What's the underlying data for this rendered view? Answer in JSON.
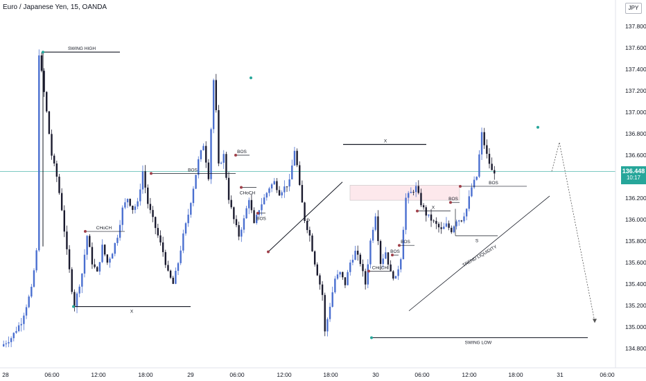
{
  "title": "Euro / Japanese Yen, 15, OANDA",
  "currency_label": "JPY",
  "last_price": "136.448",
  "countdown": "10:17",
  "colors": {
    "up": "#4a6fd0",
    "down": "#1a1a2e",
    "current_price_line": "#26a69a",
    "label_bg": "#26a69a",
    "axis_text": "#131722",
    "zone_fill": "#fde8ec"
  },
  "chart_data": {
    "type": "candlestick",
    "timeframe": "15",
    "y_ticks": [
      "134.800",
      "135.000",
      "135.200",
      "135.400",
      "135.600",
      "135.800",
      "136.000",
      "136.200",
      "136.400",
      "136.600",
      "136.800",
      "137.000",
      "137.200",
      "137.400",
      "137.600",
      "137.800"
    ],
    "ylim": [
      134.72,
      138.05
    ],
    "x_ticks": [
      "28",
      "06:00",
      "12:00",
      "18:00",
      "29",
      "06:00",
      "12:00",
      "18:00",
      "30",
      "06:00",
      "12:00",
      "18:00",
      "31",
      "06:00"
    ],
    "price_path": [
      [
        0,
        134.82
      ],
      [
        4,
        134.9
      ],
      [
        8,
        135.05
      ],
      [
        12,
        135.35
      ],
      [
        14,
        135.7
      ],
      [
        15,
        137.55
      ],
      [
        18,
        137.0
      ],
      [
        20,
        136.6
      ],
      [
        22,
        136.4
      ],
      [
        24,
        136.1
      ],
      [
        26,
        135.7
      ],
      [
        28,
        135.35
      ],
      [
        29,
        135.2
      ],
      [
        32,
        135.5
      ],
      [
        34,
        135.85
      ],
      [
        36,
        135.6
      ],
      [
        38,
        135.5
      ],
      [
        40,
        135.75
      ],
      [
        42,
        135.6
      ],
      [
        44,
        135.7
      ],
      [
        46,
        135.85
      ],
      [
        48,
        136.1
      ],
      [
        50,
        136.2
      ],
      [
        52,
        136.1
      ],
      [
        54,
        136.15
      ],
      [
        56,
        136.45
      ],
      [
        58,
        136.15
      ],
      [
        60,
        136.0
      ],
      [
        62,
        135.85
      ],
      [
        64,
        135.7
      ],
      [
        66,
        135.5
      ],
      [
        68,
        135.4
      ],
      [
        70,
        135.6
      ],
      [
        72,
        135.85
      ],
      [
        74,
        136.05
      ],
      [
        76,
        136.3
      ],
      [
        78,
        136.55
      ],
      [
        80,
        136.7
      ],
      [
        82,
        136.4
      ],
      [
        83,
        136.85
      ],
      [
        84,
        137.3
      ],
      [
        85,
        137.0
      ],
      [
        86,
        136.5
      ],
      [
        88,
        136.6
      ],
      [
        90,
        136.2
      ],
      [
        92,
        136.0
      ],
      [
        94,
        135.85
      ],
      [
        96,
        136.0
      ],
      [
        98,
        136.2
      ],
      [
        100,
        135.95
      ],
      [
        102,
        136.1
      ],
      [
        104,
        136.2
      ],
      [
        106,
        136.3
      ],
      [
        108,
        136.35
      ],
      [
        110,
        136.25
      ],
      [
        112,
        136.3
      ],
      [
        114,
        136.35
      ],
      [
        116,
        136.65
      ],
      [
        117,
        136.5
      ],
      [
        118,
        136.3
      ],
      [
        120,
        136.0
      ],
      [
        122,
        135.85
      ],
      [
        124,
        135.6
      ],
      [
        125,
        135.5
      ],
      [
        127,
        135.3
      ],
      [
        128,
        134.95
      ],
      [
        130,
        135.2
      ],
      [
        132,
        135.45
      ],
      [
        134,
        135.5
      ],
      [
        136,
        135.4
      ],
      [
        138,
        135.6
      ],
      [
        140,
        135.7
      ],
      [
        142,
        135.6
      ],
      [
        144,
        135.4
      ],
      [
        146,
        135.8
      ],
      [
        148,
        136.05
      ],
      [
        150,
        135.6
      ],
      [
        152,
        135.7
      ],
      [
        154,
        135.5
      ],
      [
        156,
        135.45
      ],
      [
        158,
        135.65
      ],
      [
        160,
        136.2
      ],
      [
        162,
        136.25
      ],
      [
        164,
        136.3
      ],
      [
        166,
        136.15
      ],
      [
        168,
        136.05
      ],
      [
        170,
        136.0
      ],
      [
        172,
        135.95
      ],
      [
        174,
        135.9
      ],
      [
        176,
        135.95
      ],
      [
        178,
        135.9
      ],
      [
        180,
        136.0
      ],
      [
        182,
        136.0
      ],
      [
        184,
        136.1
      ],
      [
        186,
        136.3
      ],
      [
        188,
        136.4
      ],
      [
        190,
        136.8
      ],
      [
        192,
        136.6
      ],
      [
        194,
        136.45
      ]
    ],
    "projection_path": [
      [
        194,
        136.45
      ],
      [
        197,
        136.72
      ],
      [
        210,
        135.05
      ]
    ],
    "annotations": [
      {
        "label": "SWING HIGH",
        "price": 137.56
      },
      {
        "label": "X",
        "price": 135.19
      },
      {
        "label": "CHoCH",
        "price": 135.89
      },
      {
        "label": "BOS",
        "price": 136.43
      },
      {
        "label": "BOS",
        "price": 136.6
      },
      {
        "label": "CHoCH",
        "price": 136.3
      },
      {
        "label": "BOS",
        "price": 136.06
      },
      {
        "label": "S",
        "price": 136.02
      },
      {
        "label": "X",
        "price": 136.7
      },
      {
        "label": "CHoCH",
        "price": 135.52
      },
      {
        "label": "BOS",
        "price": 135.67
      },
      {
        "label": "BOS",
        "price": 135.76
      },
      {
        "label": "X",
        "price": 136.08
      },
      {
        "label": "BOS",
        "price": 136.16
      },
      {
        "label": "BOS",
        "price": 136.31
      },
      {
        "label": "S",
        "price": 135.85
      },
      {
        "label": "TREND LIQUIDITY",
        "price": 135.65
      },
      {
        "label": "SWING LOW",
        "price": 134.9
      }
    ]
  }
}
